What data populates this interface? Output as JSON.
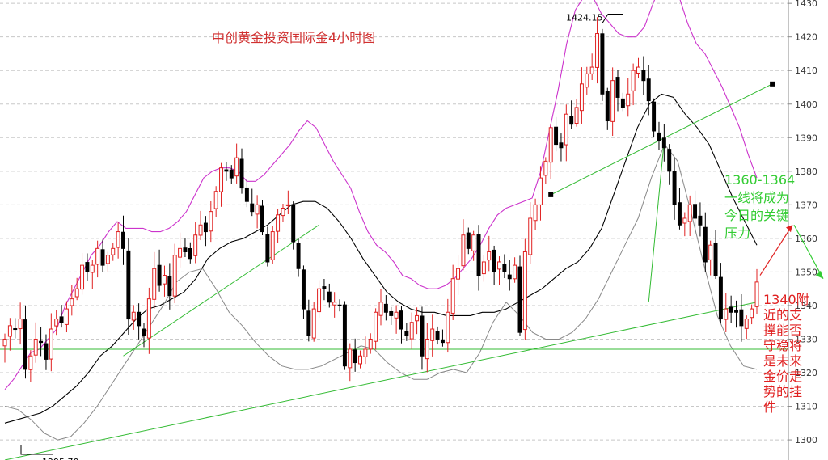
{
  "chart_data": {
    "type": "candlestick",
    "title": "中创黄金投资国际金4小时图",
    "y_axis": {
      "ticks": [
        1300,
        1310,
        1320,
        1330,
        1340,
        1350,
        1360,
        1370,
        1380,
        1390,
        1400,
        1410,
        1420,
        1430
      ],
      "tick_labels": [
        "1300",
        "1310",
        "1320",
        "1330",
        "1340",
        "1350",
        "1360",
        "1370",
        "1380",
        "1390",
        "1400",
        "1410",
        "1420",
        "1430"
      ],
      "ylim": [
        1294,
        1431
      ],
      "position": "right"
    },
    "grid": "horizontal-dashed",
    "price_extremes": [
      {
        "label": "1424.15",
        "value": 1424.15
      },
      {
        "label": "1295.70",
        "value": 1295.7
      }
    ],
    "horizontal_support_level": 1327,
    "annotations": [
      {
        "text_lines": [
          "1360-1364",
          "一线将成为",
          "今日的关键",
          "压力"
        ],
        "color": "#33cc33"
      },
      {
        "text_lines": [
          "1340附",
          "近的支",
          "撑能否",
          "守稳将",
          "是未来",
          "金价走",
          "势的挂",
          "件"
        ],
        "color": "#e02020"
      }
    ],
    "series": {
      "close": [
        1330,
        1334,
        1333,
        1336,
        1321,
        1325,
        1330,
        1329,
        1324,
        1333,
        1336,
        1335,
        1339,
        1342,
        1345,
        1352,
        1350,
        1352,
        1357,
        1352,
        1355,
        1357,
        1362,
        1357,
        1336,
        1338,
        1334,
        1331,
        1342,
        1351,
        1346,
        1349,
        1343,
        1355,
        1357,
        1356,
        1354,
        1361,
        1364,
        1362,
        1368,
        1374,
        1381,
        1380,
        1378,
        1384,
        1375,
        1371,
        1368,
        1370,
        1362,
        1353,
        1362,
        1367,
        1369,
        1370,
        1359,
        1351,
        1339,
        1331,
        1339,
        1345,
        1345,
        1341,
        1341,
        1340,
        1322,
        1327,
        1323,
        1325,
        1327,
        1330,
        1338,
        1341,
        1338,
        1337,
        1338,
        1333,
        1331,
        1335,
        1337,
        1325,
        1330,
        1333,
        1330,
        1329,
        1338,
        1348,
        1351,
        1361,
        1357,
        1361,
        1349,
        1353,
        1356,
        1350,
        1353,
        1350,
        1348,
        1352,
        1332,
        1356,
        1366,
        1370,
        1378,
        1383,
        1393,
        1388,
        1387,
        1397,
        1394,
        1399,
        1406,
        1409,
        1411,
        1421,
        1403,
        1395,
        1407,
        1402,
        1399,
        1403,
        1410,
        1411,
        1407,
        1401,
        1392,
        1389,
        1387,
        1380,
        1370,
        1364,
        1366,
        1370,
        1366,
        1364,
        1353,
        1358,
        1349,
        1336,
        1339,
        1338,
        1338,
        1334,
        1336,
        1339,
        1347
      ],
      "upper_band": [
        1315,
        1318,
        1322,
        1326,
        1327,
        1330,
        1333,
        1340,
        1345,
        1350,
        1355,
        1358,
        1362,
        1365,
        1363,
        1363,
        1363,
        1362,
        1362,
        1363,
        1365,
        1368,
        1373,
        1378,
        1380,
        1381,
        1381,
        1380,
        1377,
        1377,
        1379,
        1382,
        1385,
        1388,
        1392,
        1395,
        1393,
        1388,
        1383,
        1379,
        1375,
        1368,
        1362,
        1358,
        1356,
        1353,
        1349,
        1348,
        1346,
        1345,
        1345,
        1346,
        1348,
        1351,
        1354,
        1358,
        1363,
        1367,
        1369,
        1370,
        1371,
        1372,
        1380,
        1392,
        1404,
        1418,
        1428,
        1432,
        1432,
        1427,
        1424,
        1421,
        1420,
        1420,
        1423,
        1430,
        1436,
        1440,
        1432,
        1424,
        1418,
        1415,
        1410,
        1405,
        1399,
        1393,
        1385,
        1378
      ],
      "mid_band": [
        1305,
        1306,
        1307,
        1308,
        1310,
        1313,
        1316,
        1320,
        1325,
        1328,
        1332,
        1336,
        1339,
        1340,
        1342,
        1344,
        1348,
        1354,
        1357,
        1359,
        1360,
        1362,
        1364,
        1367,
        1370,
        1371,
        1371,
        1369,
        1365,
        1360,
        1354,
        1349,
        1344,
        1341,
        1339,
        1338,
        1338,
        1337,
        1337,
        1337,
        1338,
        1338,
        1339,
        1341,
        1343,
        1345,
        1348,
        1351,
        1353,
        1357,
        1363,
        1373,
        1383,
        1393,
        1400,
        1403,
        1402,
        1397,
        1393,
        1388,
        1380,
        1372,
        1365,
        1358
      ],
      "lower_band": [
        1310,
        1309,
        1306,
        1302,
        1300,
        1301,
        1305,
        1310,
        1316,
        1322,
        1328,
        1334,
        1340,
        1347,
        1350,
        1351,
        1345,
        1338,
        1334,
        1329,
        1325,
        1322,
        1321,
        1321,
        1322,
        1324,
        1326,
        1328,
        1327,
        1323,
        1320,
        1318,
        1318,
        1320,
        1321,
        1320,
        1326,
        1335,
        1341,
        1337,
        1332,
        1330,
        1330,
        1332,
        1336,
        1342,
        1350,
        1358,
        1366,
        1378,
        1388,
        1383,
        1368,
        1352,
        1337,
        1328,
        1322,
        1321
      ]
    },
    "trendlines": [
      {
        "name": "lower-rising-support",
        "from": {
          "index": 0,
          "price": 1294
        },
        "to": {
          "index": 146,
          "price": 1341
        }
      },
      {
        "name": "short-support-1",
        "from": {
          "index": 23,
          "price": 1325
        },
        "to": {
          "index": 61,
          "price": 1364
        }
      },
      {
        "name": "upper-rising-line",
        "from": {
          "index": 106,
          "price": 1373
        },
        "to": {
          "index": 149,
          "price": 1406
        }
      },
      {
        "name": "drop-line",
        "from": {
          "index": 128,
          "price": 1389
        },
        "to": {
          "index": 125,
          "price": 1341
        }
      }
    ],
    "arrows": [
      {
        "color": "#e02020",
        "from_price": 1349,
        "to_price": 1364
      },
      {
        "color": "#33cc33",
        "from_price": 1364,
        "to_price": 1348
      }
    ],
    "colors": {
      "up": "#e02020",
      "down": "#000000",
      "upper_band": "#cc33cc",
      "mid_band": "#000000",
      "lower_band": "#888888",
      "support": "#33bb33",
      "grid": "#c8c8c8",
      "axis": "#888888"
    }
  }
}
